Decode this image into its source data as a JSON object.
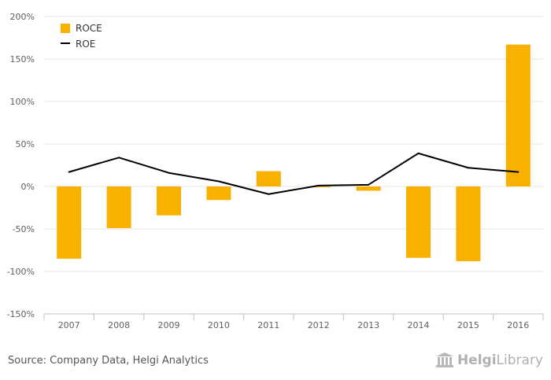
{
  "chart_data": {
    "type": "bar",
    "categories": [
      "2007",
      "2008",
      "2009",
      "2010",
      "2011",
      "2012",
      "2013",
      "2014",
      "2015",
      "2016"
    ],
    "series": [
      {
        "name": "ROCE",
        "kind": "bar",
        "color": "#f9b100",
        "values": [
          -85,
          -49,
          -34,
          -16,
          18,
          -1,
          -5,
          -84,
          -88,
          167
        ]
      },
      {
        "name": "ROE",
        "kind": "line",
        "color": "#000000",
        "values": [
          17,
          34,
          16,
          6,
          -9,
          1,
          2,
          39,
          22,
          17
        ]
      }
    ],
    "ylim": [
      -150,
      200
    ],
    "yticks": [
      -150,
      -100,
      -50,
      0,
      50,
      100,
      150,
      200
    ],
    "ytick_labels": [
      "-150%",
      "-100%",
      "-50%",
      "0%",
      "50%",
      "100%",
      "150%",
      "200%"
    ],
    "grid": true,
    "legend": "top-left"
  },
  "footer": {
    "source": "Source: Company Data, Helgi Analytics",
    "brand_part1": "Helgi",
    "brand_part2": "Library"
  },
  "colors": {
    "grid": "#e6e6e6",
    "axis": "#c0c0c0",
    "tick_text": "#606060"
  }
}
